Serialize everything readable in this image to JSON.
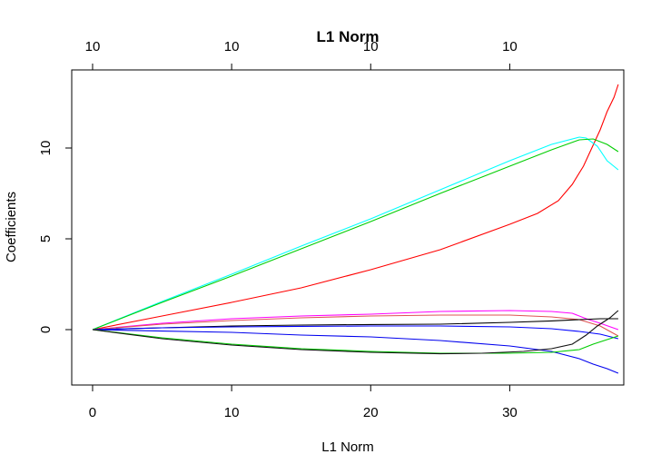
{
  "chart_data": {
    "type": "line",
    "title": "L1 Norm",
    "xlabel": "L1 Norm",
    "ylabel": "Coefficients",
    "xlim": [
      -1.5,
      38.2
    ],
    "ylim": [
      -3.05,
      14.3
    ],
    "grid": false,
    "legend": "none",
    "x_ticks": [
      0,
      10,
      20,
      30
    ],
    "x_tick_labels": [
      "0",
      "10",
      "20",
      "30"
    ],
    "y_ticks": [
      0,
      5,
      10
    ],
    "y_tick_labels": [
      "0",
      "5",
      "10"
    ],
    "top_axis": {
      "ticks": [
        0,
        10,
        20,
        30
      ],
      "labels": [
        "10",
        "10",
        "10",
        "10"
      ]
    },
    "series": [
      {
        "color": "#ff0000",
        "points": [
          [
            0,
            0
          ],
          [
            5,
            0.75
          ],
          [
            10,
            1.5
          ],
          [
            15,
            2.3
          ],
          [
            20,
            3.3
          ],
          [
            25,
            4.4
          ],
          [
            30,
            5.8
          ],
          [
            32,
            6.4
          ],
          [
            33.5,
            7.1
          ],
          [
            34.5,
            8.0
          ],
          [
            35.3,
            9.0
          ],
          [
            35.9,
            10.0
          ],
          [
            36.5,
            11.0
          ],
          [
            37,
            12.0
          ],
          [
            37.5,
            12.8
          ],
          [
            37.8,
            13.5
          ]
        ]
      },
      {
        "color": "#00ffff",
        "points": [
          [
            0,
            0
          ],
          [
            5,
            1.55
          ],
          [
            10,
            3.05
          ],
          [
            15,
            4.6
          ],
          [
            20,
            6.1
          ],
          [
            25,
            7.7
          ],
          [
            30,
            9.3
          ],
          [
            33,
            10.2
          ],
          [
            35,
            10.6
          ],
          [
            35.5,
            10.55
          ],
          [
            36.3,
            10.1
          ],
          [
            37,
            9.3
          ],
          [
            37.8,
            8.8
          ]
        ]
      },
      {
        "color": "#00cd00",
        "points": [
          [
            0,
            0
          ],
          [
            5,
            1.5
          ],
          [
            10,
            2.95
          ],
          [
            15,
            4.45
          ],
          [
            20,
            5.95
          ],
          [
            25,
            7.5
          ],
          [
            30,
            9.0
          ],
          [
            33,
            9.9
          ],
          [
            35,
            10.45
          ],
          [
            36,
            10.5
          ],
          [
            37,
            10.2
          ],
          [
            37.8,
            9.8
          ]
        ]
      },
      {
        "color": "#ff00ff",
        "points": [
          [
            0,
            0
          ],
          [
            5,
            0.35
          ],
          [
            10,
            0.6
          ],
          [
            15,
            0.75
          ],
          [
            20,
            0.85
          ],
          [
            25,
            1.0
          ],
          [
            30,
            1.05
          ],
          [
            33,
            1.0
          ],
          [
            34.5,
            0.9
          ],
          [
            35.5,
            0.6
          ],
          [
            36.5,
            0.35
          ],
          [
            37.8,
            0.0
          ]
        ]
      },
      {
        "color": "#df5353",
        "points": [
          [
            0,
            0
          ],
          [
            5,
            0.3
          ],
          [
            10,
            0.5
          ],
          [
            15,
            0.65
          ],
          [
            20,
            0.75
          ],
          [
            25,
            0.8
          ],
          [
            30,
            0.8
          ],
          [
            33,
            0.7
          ],
          [
            35,
            0.55
          ],
          [
            36.5,
            0.2
          ],
          [
            37.8,
            -0.35
          ]
        ]
      },
      {
        "color": "#000000",
        "points": [
          [
            0,
            0
          ],
          [
            5,
            0.1
          ],
          [
            10,
            0.2
          ],
          [
            15,
            0.25
          ],
          [
            20,
            0.28
          ],
          [
            25,
            0.3
          ],
          [
            30,
            0.4
          ],
          [
            33,
            0.48
          ],
          [
            35,
            0.55
          ],
          [
            36.5,
            0.6
          ],
          [
            37.8,
            0.6
          ]
        ]
      },
      {
        "color": "#0000ff",
        "points": [
          [
            0,
            0
          ],
          [
            5,
            0.1
          ],
          [
            10,
            0.15
          ],
          [
            15,
            0.18
          ],
          [
            20,
            0.2
          ],
          [
            25,
            0.2
          ],
          [
            30,
            0.15
          ],
          [
            33,
            0.05
          ],
          [
            35,
            -0.1
          ],
          [
            36.5,
            -0.25
          ],
          [
            37.8,
            -0.5
          ]
        ]
      },
      {
        "color": "#0000ee",
        "points": [
          [
            0,
            0
          ],
          [
            5,
            -0.08
          ],
          [
            10,
            -0.15
          ],
          [
            15,
            -0.3
          ],
          [
            20,
            -0.4
          ],
          [
            25,
            -0.6
          ],
          [
            30,
            -0.9
          ],
          [
            33,
            -1.2
          ],
          [
            35,
            -1.6
          ],
          [
            36,
            -1.9
          ],
          [
            37,
            -2.15
          ],
          [
            37.8,
            -2.4
          ]
        ]
      },
      {
        "color": "#00cc00",
        "points": [
          [
            0,
            0
          ],
          [
            5,
            -0.45
          ],
          [
            10,
            -0.8
          ],
          [
            15,
            -1.05
          ],
          [
            20,
            -1.2
          ],
          [
            25,
            -1.3
          ],
          [
            30,
            -1.3
          ],
          [
            33,
            -1.25
          ],
          [
            35,
            -1.1
          ],
          [
            36,
            -0.8
          ],
          [
            37,
            -0.55
          ],
          [
            37.8,
            -0.35
          ]
        ]
      },
      {
        "color": "#111111",
        "points": [
          [
            0,
            0
          ],
          [
            5,
            -0.5
          ],
          [
            10,
            -0.85
          ],
          [
            15,
            -1.1
          ],
          [
            20,
            -1.25
          ],
          [
            25,
            -1.33
          ],
          [
            28,
            -1.3
          ],
          [
            31,
            -1.2
          ],
          [
            33,
            -1.05
          ],
          [
            34.5,
            -0.8
          ],
          [
            35.5,
            -0.3
          ],
          [
            36.3,
            0.2
          ],
          [
            37.2,
            0.65
          ],
          [
            37.8,
            1.05
          ]
        ]
      }
    ]
  }
}
